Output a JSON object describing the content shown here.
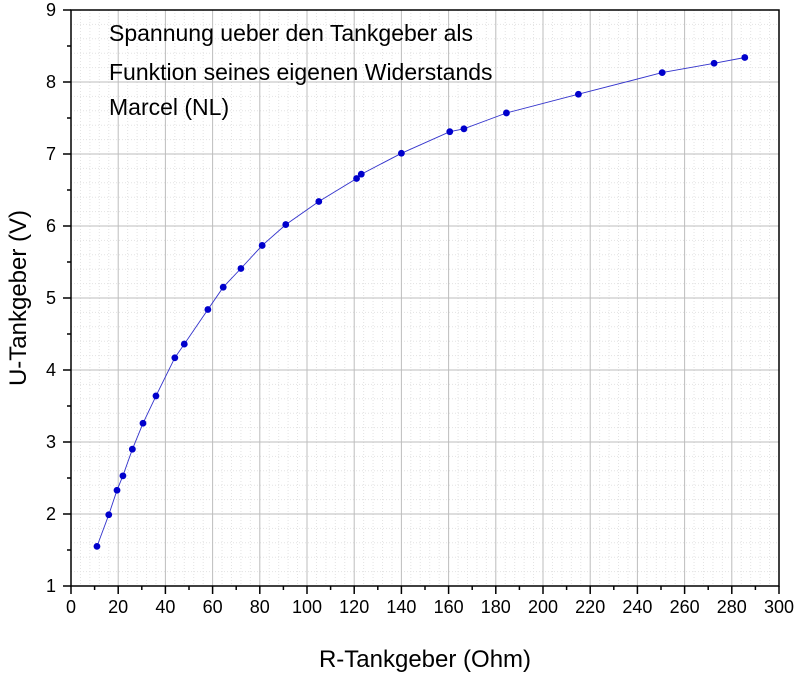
{
  "chart_data": {
    "type": "scatter",
    "title_lines": [
      "Spannung ueber den Tankgeber als",
      "Funktion seines eigenen Widerstands",
      "Marcel (NL)"
    ],
    "xlabel": "R-Tankgeber (Ohm)",
    "ylabel": "U-Tankgeber (V)",
    "xlim": [
      0,
      300
    ],
    "ylim": [
      1,
      9
    ],
    "xticks": [
      "0",
      "20",
      "40",
      "60",
      "80",
      "100",
      "120",
      "140",
      "160",
      "180",
      "200",
      "220",
      "240",
      "260",
      "280",
      "300"
    ],
    "yticks": [
      "1",
      "2",
      "3",
      "4",
      "5",
      "6",
      "7",
      "8",
      "9"
    ],
    "grid": true,
    "marker_color": "#0000cc",
    "line_color": "#3333cc",
    "series": [
      {
        "x": [
          11,
          16,
          19.5,
          22,
          26,
          30.5,
          36,
          44,
          48,
          58,
          64.5,
          72,
          81,
          91,
          105,
          121,
          123,
          140,
          160.5,
          166.5,
          184.5,
          215,
          250.5,
          272.5,
          285.5
        ],
        "y": [
          1.55,
          1.99,
          2.33,
          2.53,
          2.9,
          3.26,
          3.64,
          4.17,
          4.36,
          4.84,
          5.15,
          5.41,
          5.73,
          6.02,
          6.34,
          6.66,
          6.72,
          7.01,
          7.31,
          7.35,
          7.57,
          7.83,
          8.13,
          8.26,
          8.34
        ]
      }
    ]
  }
}
